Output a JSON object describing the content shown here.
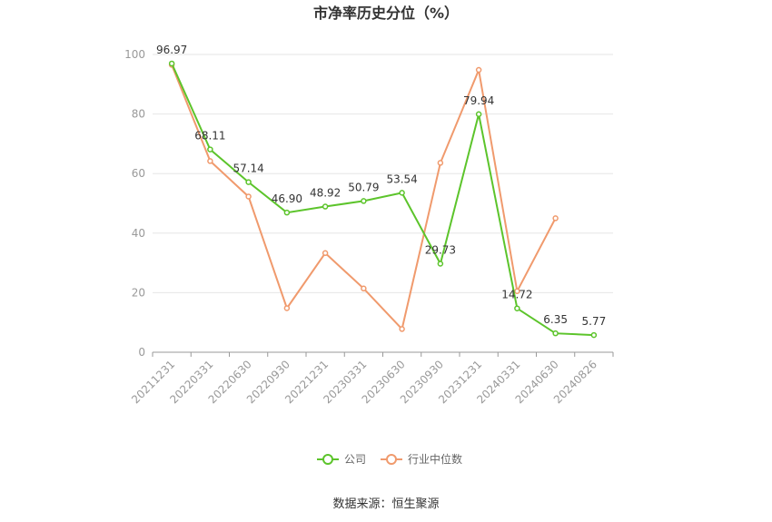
{
  "chart_data": {
    "type": "line",
    "title": "市净率历史分位（%）",
    "categories": [
      "20211231",
      "20220331",
      "20220630",
      "20220930",
      "20221231",
      "20230331",
      "20230630",
      "20230930",
      "20231231",
      "20240331",
      "20240630",
      "20240826"
    ],
    "ylim": [
      0,
      100
    ],
    "yticks": [
      0,
      20,
      40,
      60,
      80,
      100
    ],
    "series": [
      {
        "name": "公司",
        "color": "#5cc42b",
        "values": [
          96.97,
          68.11,
          57.14,
          46.9,
          48.92,
          50.79,
          53.54,
          29.73,
          79.94,
          14.72,
          6.35,
          5.77
        ],
        "labels": [
          "96.97",
          "68.11",
          "57.14",
          "46.90",
          "48.92",
          "50.79",
          "53.54",
          "29.73",
          "79.94",
          "14.72",
          "6.35",
          "5.77"
        ]
      },
      {
        "name": "行业中位数",
        "color": "#f09a6d",
        "values": [
          96.5,
          64.2,
          52.3,
          14.8,
          33.3,
          21.4,
          7.8,
          63.6,
          94.8,
          20.5,
          45.0,
          null
        ]
      }
    ],
    "legend_position": "bottom",
    "grid": true
  },
  "source": "数据来源：恒生聚源"
}
